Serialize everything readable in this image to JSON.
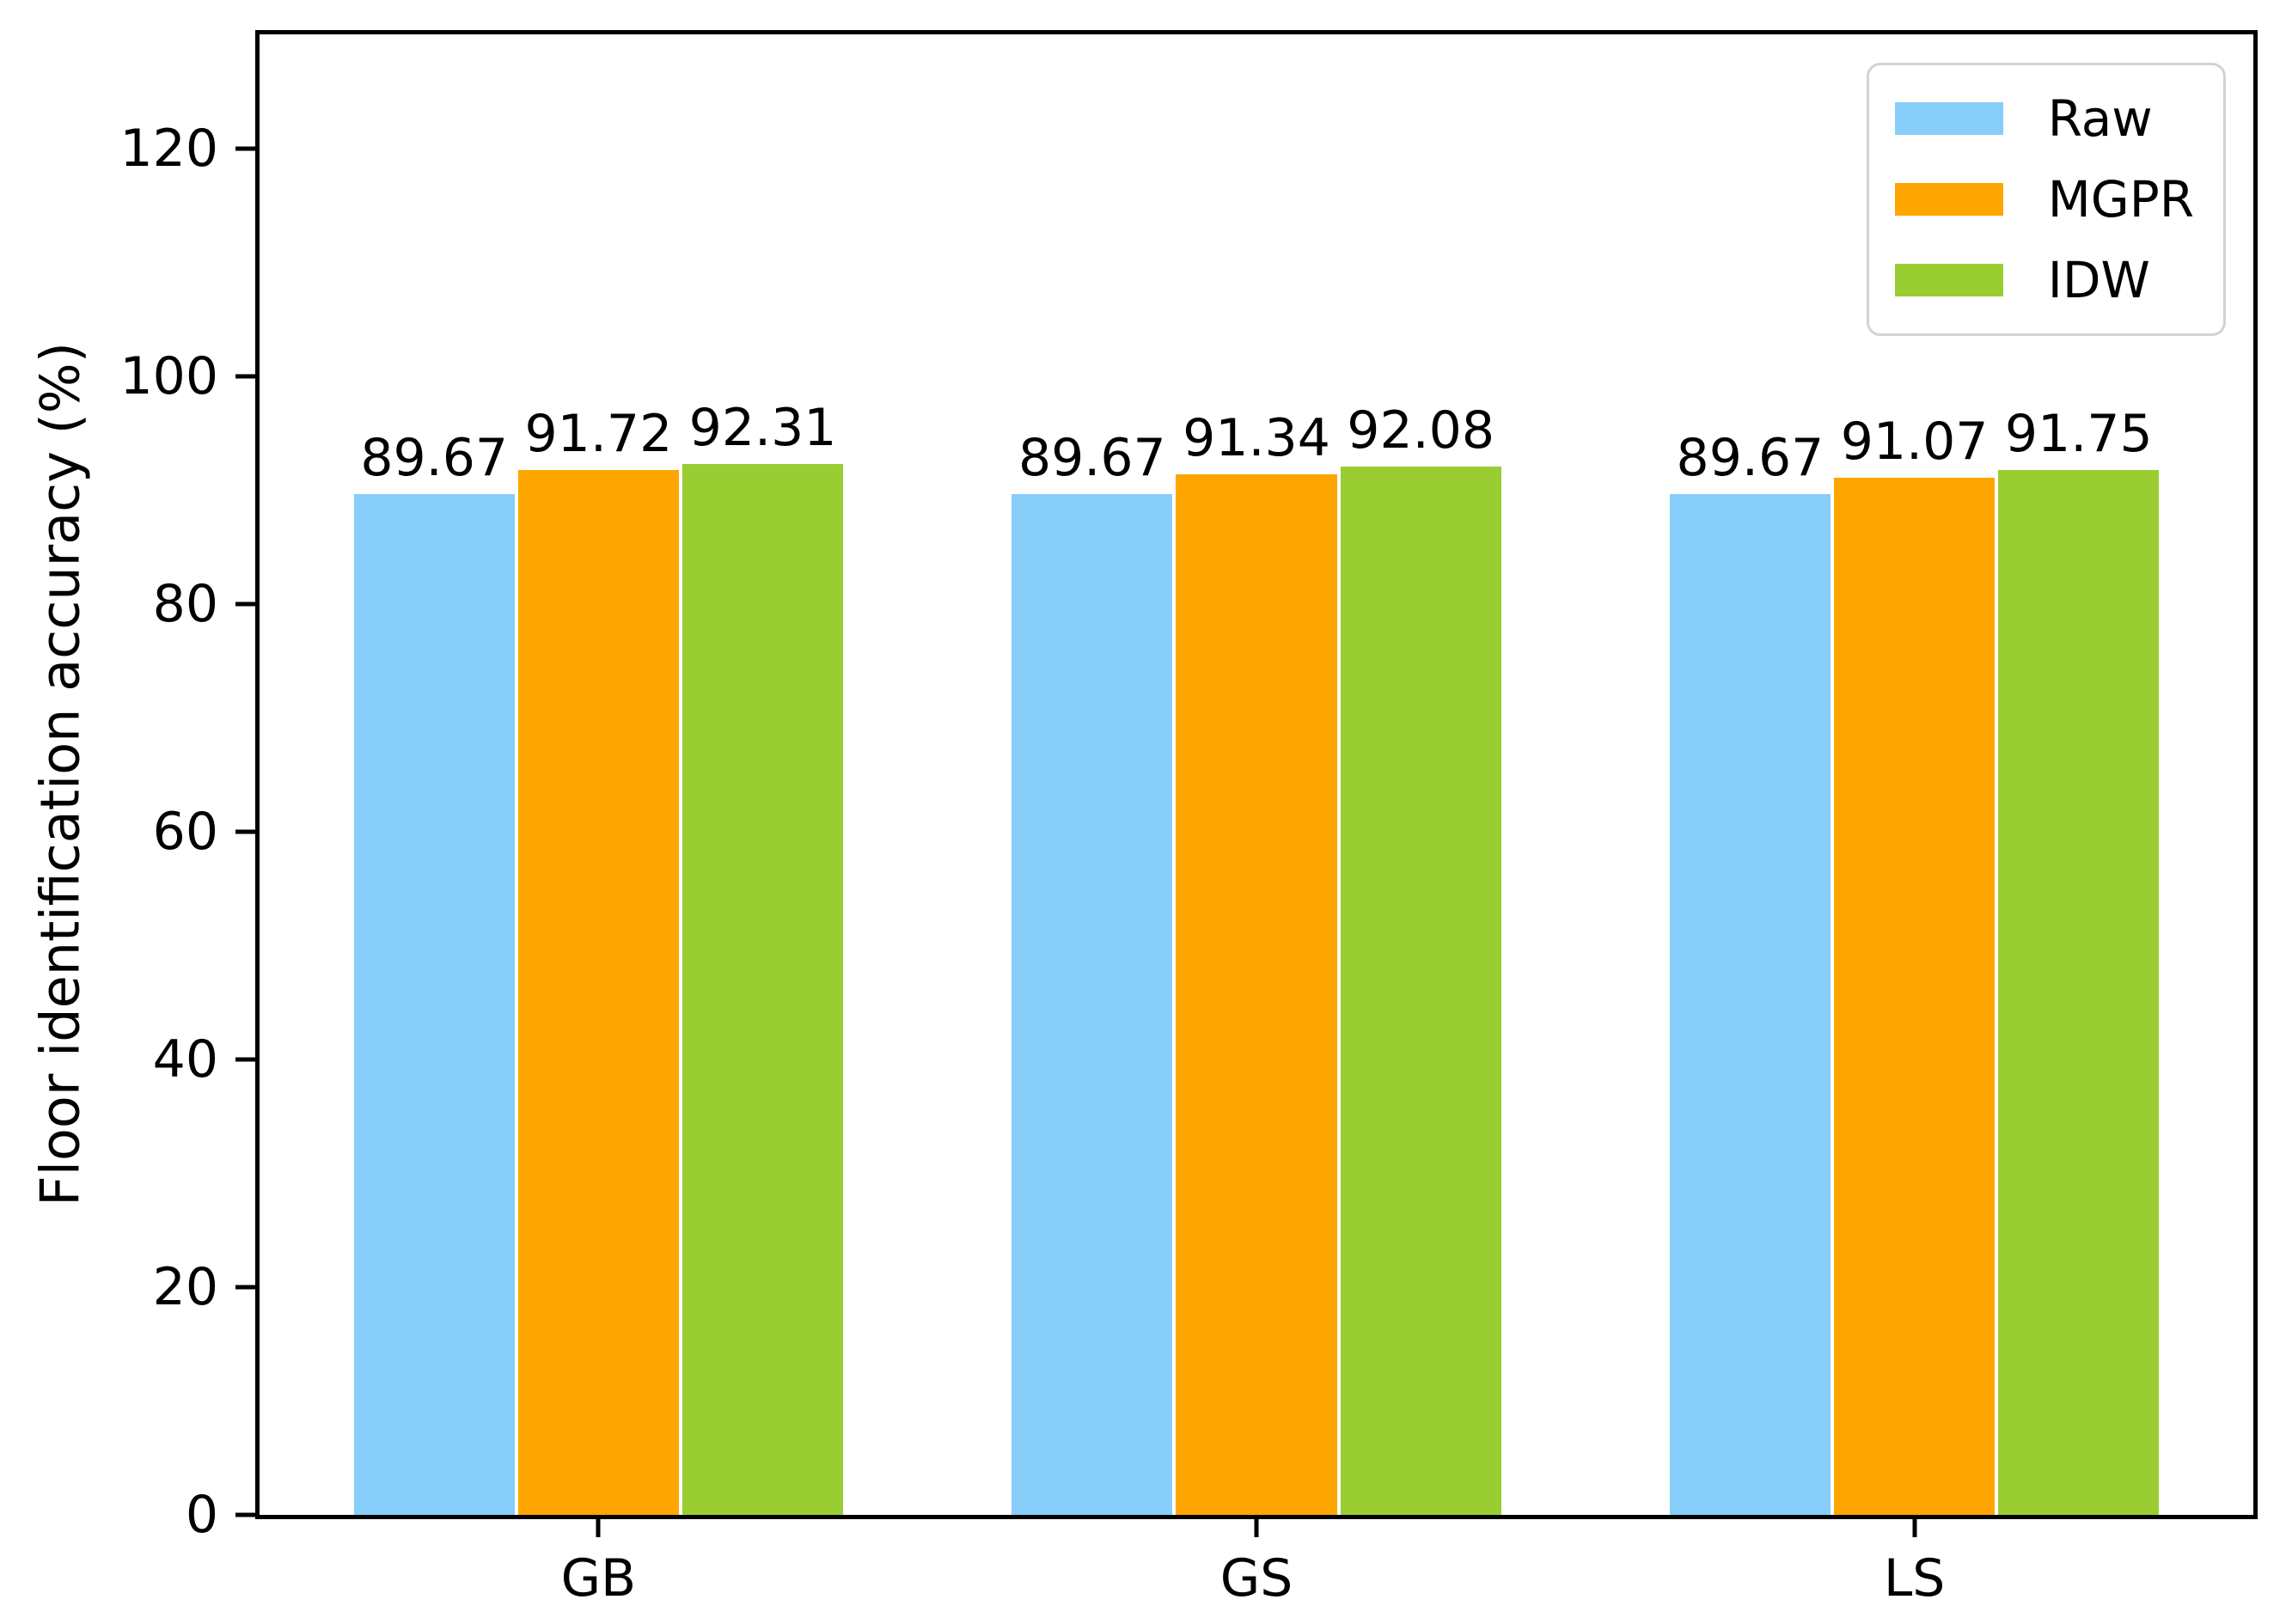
{
  "chart_data": {
    "type": "bar",
    "title": "",
    "xlabel": "",
    "ylabel": "Floor identification accuracy (%)",
    "categories": [
      "GB",
      "GS",
      "LS"
    ],
    "series": [
      {
        "name": "Raw",
        "color": "#87CEFA",
        "values": [
          89.67,
          89.67,
          89.67
        ]
      },
      {
        "name": "MGPR",
        "color": "#FFA500",
        "values": [
          91.72,
          91.34,
          91.07
        ]
      },
      {
        "name": "IDW",
        "color": "#9ACD32",
        "values": [
          92.31,
          92.08,
          91.75
        ]
      }
    ],
    "bar_value_labels": [
      [
        "89.67",
        "91.72",
        "92.31"
      ],
      [
        "89.67",
        "91.34",
        "92.08"
      ],
      [
        "89.67",
        "91.07",
        "91.75"
      ]
    ],
    "yticks": [
      "0",
      "20",
      "40",
      "60",
      "80",
      "100",
      "120"
    ],
    "ylim": [
      0,
      130
    ],
    "grid": false,
    "legend_position": "upper right",
    "colors": {
      "axis": "#000000",
      "legend_border": "#d3d3d3",
      "background": "#ffffff"
    }
  }
}
